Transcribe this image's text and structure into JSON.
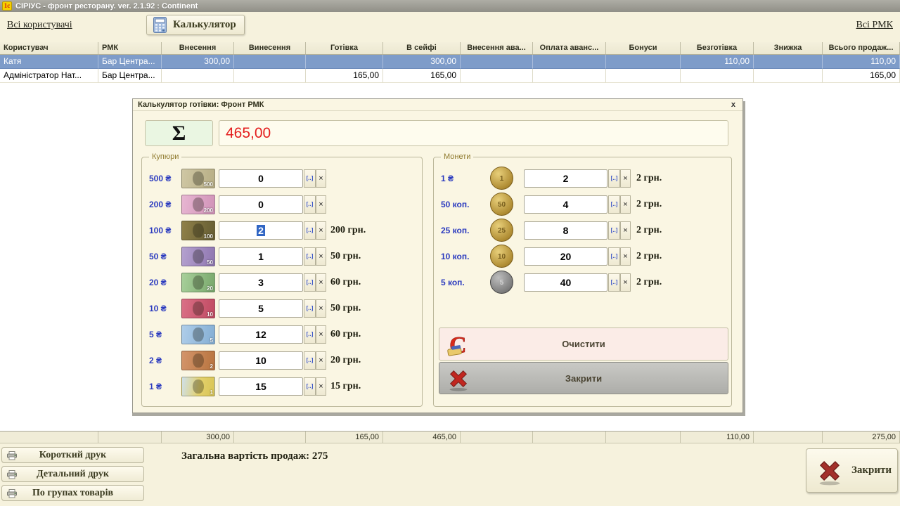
{
  "window": {
    "title": "СІРІУС - фронт ресторану. ver. 2.1.92 : Continent"
  },
  "icons": {
    "app_logo": "1с",
    "sigma": "Σ",
    "dialog_close_x": "x",
    "spin_choose": "[..]",
    "spin_clear": "×"
  },
  "toolbar": {
    "all_users_link": "Всі користувачі",
    "calculator_button": "Калькулятор",
    "all_rmk_link": "Всі РМК"
  },
  "table": {
    "columns": [
      "Користувач",
      "РМК",
      "Внесення",
      "Винесення",
      "Готівка",
      "В сейфі",
      "Внесення ава...",
      "Оплата аванс...",
      "Бонуси",
      "Безготівка",
      "Знижка",
      "Всього продаж..."
    ],
    "rows": [
      {
        "selected": true,
        "cells": [
          "Катя",
          "Бар Центра...",
          "300,00",
          "",
          "",
          "300,00",
          "",
          "",
          "",
          "110,00",
          "",
          "110,00"
        ]
      },
      {
        "selected": false,
        "cells": [
          "Адміністратор Нат...",
          "Бар Центра...",
          "",
          "",
          "165,00",
          "165,00",
          "",
          "",
          "",
          "",
          "",
          "165,00"
        ]
      }
    ],
    "totals": [
      "",
      "",
      "300,00",
      "",
      "165,00",
      "465,00",
      "",
      "",
      "",
      "110,00",
      "",
      "275,00"
    ]
  },
  "dialog": {
    "title": "Калькулятор готівки: Фронт РМК",
    "total": "465,00",
    "banknotes": {
      "group_label": "Купюри",
      "items": [
        {
          "denom": "500 ₴",
          "count": "0",
          "amount": ""
        },
        {
          "denom": "200 ₴",
          "count": "0",
          "amount": ""
        },
        {
          "denom": "100 ₴",
          "count": "2",
          "amount": "200 грн.",
          "selected": true
        },
        {
          "denom": "50 ₴",
          "count": "1",
          "amount": "50 грн."
        },
        {
          "denom": "20 ₴",
          "count": "3",
          "amount": "60 грн."
        },
        {
          "denom": "10 ₴",
          "count": "5",
          "amount": "50 грн."
        },
        {
          "denom": "5 ₴",
          "count": "12",
          "amount": "60 грн."
        },
        {
          "denom": "2 ₴",
          "count": "10",
          "amount": "20 грн."
        },
        {
          "denom": "1 ₴",
          "count": "15",
          "amount": "15 грн."
        }
      ]
    },
    "coins": {
      "group_label": "Монети",
      "items": [
        {
          "denom": "1 ₴",
          "count": "2",
          "amount": "2 грн."
        },
        {
          "denom": "50 коп.",
          "count": "4",
          "amount": "2 грн."
        },
        {
          "denom": "25 коп.",
          "count": "8",
          "amount": "2 грн."
        },
        {
          "denom": "10 коп.",
          "count": "20",
          "amount": "2 грн."
        },
        {
          "denom": "5 коп.",
          "count": "40",
          "amount": "2 грн."
        }
      ]
    },
    "clear_button": "Очистити",
    "close_button": "Закрити"
  },
  "footer": {
    "print_short": "Короткий друк",
    "print_detailed": "Детальний друк",
    "print_groups": "По групах товарів",
    "total_sales_text": "Загальна вартість продаж: 275",
    "close_button": "Закрити"
  },
  "colors": {
    "selected_row": "#7e9cc9",
    "sum_text": "#e41e1e",
    "denom_label": "#2b3bbf",
    "background": "#f6f2dd"
  }
}
